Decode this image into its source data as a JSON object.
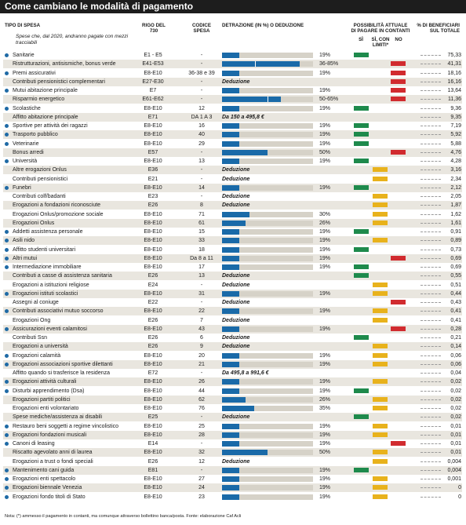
{
  "title": "Come cambiano le modalità di pagamento",
  "headers": {
    "tipo": "TIPO DI SPESA",
    "rigo": "RIGO DEL 730",
    "codice": "CODICE SPESA",
    "detrazione": "DETRAZIONE (IN %) O DEDUZIONE",
    "possibilita": "POSSIBILITÀ ATTUALE DI PAGARE IN CONTANTI",
    "si": "SÌ",
    "si_limiti": "SÌ, CON LIMITI*",
    "no": "NO",
    "beneficiari": "% DI BENEFICIARI SUL TOTALE"
  },
  "subnote": "Spese che, dal 2020, andranno pagate con mezzi tracciabili",
  "footnote": "Nota: (*) ammesso il pagamento in contanti, ma comunque attraverso bollettino banca/posta. Fonte: elaborazione Caf Acli",
  "rows": [
    {
      "name": "Sanitarie",
      "dot": true,
      "rigo": "E1 - E5",
      "cod": "-",
      "bar": 19,
      "label": "19%",
      "status": "si",
      "ben": "75,33"
    },
    {
      "name": "Ristrutturazioni, antisismiche, bonus verde",
      "dot": false,
      "rigo": "E41-E53",
      "cod": "-",
      "bar": 85,
      "bar2": 36,
      "label": "36-85%",
      "status": "no",
      "ben": "41,31"
    },
    {
      "name": "Premi assicurativi",
      "dot": true,
      "rigo": "E8-E10",
      "cod": "36-38 e 39",
      "bar": 19,
      "label": "19%",
      "status": "no",
      "ben": "18,16"
    },
    {
      "name": "Contributi pensionistici complementari",
      "dot": false,
      "rigo": "E27-E30",
      "cod": "-",
      "ded": "Deduzione",
      "status": "no",
      "ben": "16,16"
    },
    {
      "name": "Mutui abitazione principale",
      "dot": true,
      "rigo": "E7",
      "cod": "-",
      "bar": 19,
      "label": "19%",
      "status": "no",
      "ben": "13,64"
    },
    {
      "name": "Risparmio energetico",
      "dot": false,
      "rigo": "E61-E62",
      "cod": "-",
      "bar": 65,
      "bar2": 50,
      "label": "50-65%",
      "status": "no",
      "ben": "11,36"
    },
    {
      "name": "Scolastiche",
      "dot": true,
      "rigo": "E8-E10",
      "cod": "12",
      "bar": 19,
      "label": "19%",
      "status": "si",
      "ben": "9,36"
    },
    {
      "name": "Affitto abitazione principale",
      "dot": false,
      "rigo": "E71",
      "cod": "DA 1 A 3",
      "ded": "Da 150 a 495,8 €",
      "status": "",
      "ben": "9,35"
    },
    {
      "name": "Sportive per attività dei ragazzi",
      "dot": true,
      "rigo": "E8-E10",
      "cod": "16",
      "bar": 19,
      "label": "19%",
      "status": "si",
      "ben": "7,19"
    },
    {
      "name": "Trasporto pubblico",
      "dot": true,
      "rigo": "E8-E10",
      "cod": "40",
      "bar": 19,
      "label": "19%",
      "status": "si",
      "ben": "5,92"
    },
    {
      "name": "Veterinarie",
      "dot": true,
      "rigo": "E8-E10",
      "cod": "29",
      "bar": 19,
      "label": "19%",
      "status": "si",
      "ben": "5,88"
    },
    {
      "name": "Bonus arredi",
      "dot": false,
      "rigo": "E57",
      "cod": "-",
      "bar": 50,
      "label": "50%",
      "status": "no",
      "ben": "4,76"
    },
    {
      "name": "Università",
      "dot": true,
      "rigo": "E8-E10",
      "cod": "13",
      "bar": 19,
      "label": "19%",
      "status": "si",
      "ben": "4,28"
    },
    {
      "name": "Altre erogazioni Onlus",
      "dot": false,
      "rigo": "E36",
      "cod": "-",
      "ded": "Deduzione",
      "status": "lim",
      "ben": "3,16"
    },
    {
      "name": "Contributi pensionistici",
      "dot": false,
      "rigo": "E21",
      "cod": "-",
      "ded": "Deduzione",
      "status": "lim",
      "ben": "2,34"
    },
    {
      "name": "Funebri",
      "dot": true,
      "rigo": "E8-E10",
      "cod": "14",
      "bar": 19,
      "label": "19%",
      "status": "si",
      "ben": "2,12"
    },
    {
      "name": "Contributi colf/badanti",
      "dot": false,
      "rigo": "E23",
      "cod": "-",
      "ded": "Deduzione",
      "status": "lim",
      "ben": "2,05"
    },
    {
      "name": "Erogazioni a fondazioni riconosciute",
      "dot": false,
      "rigo": "E26",
      "cod": "8",
      "ded": "Deduzione",
      "status": "lim",
      "ben": "1,87"
    },
    {
      "name": "Erogazioni Onlus/promozione sociale",
      "dot": false,
      "rigo": "E8-E10",
      "cod": "71",
      "bar": 30,
      "label": "30%",
      "status": "lim",
      "ben": "1,62"
    },
    {
      "name": "Erogazioni Onlus",
      "dot": false,
      "rigo": "E8-E10",
      "cod": "61",
      "bar": 26,
      "label": "26%",
      "status": "lim",
      "ben": "1,61"
    },
    {
      "name": "Addetti assistenza personale",
      "dot": true,
      "rigo": "E8-E10",
      "cod": "15",
      "bar": 19,
      "label": "19%",
      "status": "si",
      "ben": "0,91"
    },
    {
      "name": "Asili nido",
      "dot": true,
      "rigo": "E8-E10",
      "cod": "33",
      "bar": 19,
      "label": "19%",
      "status": "lim",
      "ben": "0,89"
    },
    {
      "name": "Affitto studenti universitari",
      "dot": true,
      "rigo": "E8-E10",
      "cod": "18",
      "bar": 19,
      "label": "19%",
      "status": "si",
      "ben": "0,73"
    },
    {
      "name": "Altri mutui",
      "dot": true,
      "rigo": "E8-E10",
      "cod": "Da 8 a 11",
      "bar": 19,
      "label": "19%",
      "status": "no",
      "ben": "0,69"
    },
    {
      "name": "Intermediazione immobiliare",
      "dot": true,
      "rigo": "E8-E10",
      "cod": "17",
      "bar": 19,
      "label": "19%",
      "status": "si",
      "ben": "0,69"
    },
    {
      "name": "Contributi a casse di assistenza sanitaria",
      "dot": false,
      "rigo": "E26",
      "cod": "13",
      "ded": "Deduzione",
      "status": "si",
      "ben": "0,55"
    },
    {
      "name": "Erogazioni a istituzioni religiose",
      "dot": false,
      "rigo": "E24",
      "cod": "-",
      "ded": "Deduzione",
      "status": "lim",
      "ben": "0,51"
    },
    {
      "name": "Erogazioni istituti scolastici",
      "dot": true,
      "rigo": "E8-E10",
      "cod": "31",
      "bar": 19,
      "label": "19%",
      "status": "lim",
      "ben": "0,44"
    },
    {
      "name": "Assegni al coniuge",
      "dot": false,
      "rigo": "E22",
      "cod": "-",
      "ded": "Deduzione",
      "status": "no",
      "ben": "0,43"
    },
    {
      "name": "Contributi associativi mutuo soccorso",
      "dot": true,
      "rigo": "E8-E10",
      "cod": "22",
      "bar": 19,
      "label": "19%",
      "status": "lim",
      "ben": "0,41"
    },
    {
      "name": "Erogazioni Ong",
      "dot": false,
      "rigo": "E26",
      "cod": "7",
      "ded": "Deduzione",
      "status": "lim",
      "ben": "0,41"
    },
    {
      "name": "Assicurazioni eventi calamitosi",
      "dot": true,
      "rigo": "E8-E10",
      "cod": "43",
      "bar": 19,
      "label": "19%",
      "status": "no",
      "ben": "0,28"
    },
    {
      "name": "Contributi Ssn",
      "dot": false,
      "rigo": "E26",
      "cod": "6",
      "ded": "Deduzione",
      "status": "si",
      "ben": "0,21"
    },
    {
      "name": "Erogazioni a università",
      "dot": false,
      "rigo": "E26",
      "cod": "9",
      "ded": "Deduzione",
      "status": "lim",
      "ben": "0,14"
    },
    {
      "name": "Erogazioni calamità",
      "dot": true,
      "rigo": "E8-E10",
      "cod": "20",
      "bar": 19,
      "label": "19%",
      "status": "lim",
      "ben": "0,06"
    },
    {
      "name": "Erogazioni associazioni sportive dilettanti",
      "dot": true,
      "rigo": "E8-E10",
      "cod": "21",
      "bar": 19,
      "label": "19%",
      "status": "lim",
      "ben": "0,06"
    },
    {
      "name": "Affitto quando si trasferisce la residenza",
      "dot": false,
      "rigo": "E72",
      "cod": "-",
      "ded": "Da 495,8 a 991,6 €",
      "status": "",
      "ben": "0,04"
    },
    {
      "name": "Erogazioni attività culturali",
      "dot": true,
      "rigo": "E8-E10",
      "cod": "26",
      "bar": 19,
      "label": "19%",
      "status": "lim",
      "ben": "0,02"
    },
    {
      "name": "Disturbi apprendimento (Dsa)",
      "dot": true,
      "rigo": "E8-E10",
      "cod": "44",
      "bar": 19,
      "label": "19%",
      "status": "si",
      "ben": "0,02"
    },
    {
      "name": "Erogazioni partiti politici",
      "dot": false,
      "rigo": "E8-E10",
      "cod": "62",
      "bar": 26,
      "label": "26%",
      "status": "lim",
      "ben": "0,02"
    },
    {
      "name": "Erogazioni enti volontariato",
      "dot": false,
      "rigo": "E8-E10",
      "cod": "76",
      "bar": 35,
      "label": "35%",
      "status": "lim",
      "ben": "0,02"
    },
    {
      "name": "Spese mediche/assistenza ai disabili",
      "dot": false,
      "rigo": "E25",
      "cod": "-",
      "ded": "Deduzione",
      "status": "si",
      "ben": "0,02"
    },
    {
      "name": "Restauro beni soggetti  a regime vincolistico",
      "dot": true,
      "rigo": "E8-E10",
      "cod": "25",
      "bar": 19,
      "label": "19%",
      "status": "lim",
      "ben": "0,01"
    },
    {
      "name": "Erogazioni fondazioni musicali",
      "dot": true,
      "rigo": "E8-E10",
      "cod": "28",
      "bar": 19,
      "label": "19%",
      "status": "lim",
      "ben": "0,01"
    },
    {
      "name": "Canoni di leasing",
      "dot": true,
      "rigo": "E14",
      "cod": "-",
      "bar": 19,
      "label": "19%",
      "status": "no",
      "ben": "0,01"
    },
    {
      "name": "Riscatto agevolato anni di laurea",
      "dot": false,
      "rigo": "E8-E10",
      "cod": "32",
      "bar": 50,
      "label": "50%",
      "status": "lim",
      "ben": "0,01"
    },
    {
      "name": "Erogazioni a trust o fondi speciali",
      "dot": false,
      "rigo": "E26",
      "cod": "12",
      "ded": "Deduzione",
      "status": "lim",
      "ben": "0,004"
    },
    {
      "name": "Mantenimento cani guida",
      "dot": true,
      "rigo": "E81",
      "cod": "-",
      "bar": 19,
      "label": "19%",
      "status": "si",
      "ben": "0,004"
    },
    {
      "name": "Erogazioni enti spettacolo",
      "dot": true,
      "rigo": "E8-E10",
      "cod": "27",
      "bar": 19,
      "label": "19%",
      "status": "lim",
      "ben": "0,001"
    },
    {
      "name": "Erogazioni biennale Venezia",
      "dot": true,
      "rigo": "E8-E10",
      "cod": "24",
      "bar": 19,
      "label": "19%",
      "status": "lim",
      "ben": "0"
    },
    {
      "name": "Erogazioni fondo titoli di Stato",
      "dot": true,
      "rigo": "E8-E10",
      "cod": "23",
      "bar": 19,
      "label": "19%",
      "status": "lim",
      "ben": "0"
    }
  ]
}
